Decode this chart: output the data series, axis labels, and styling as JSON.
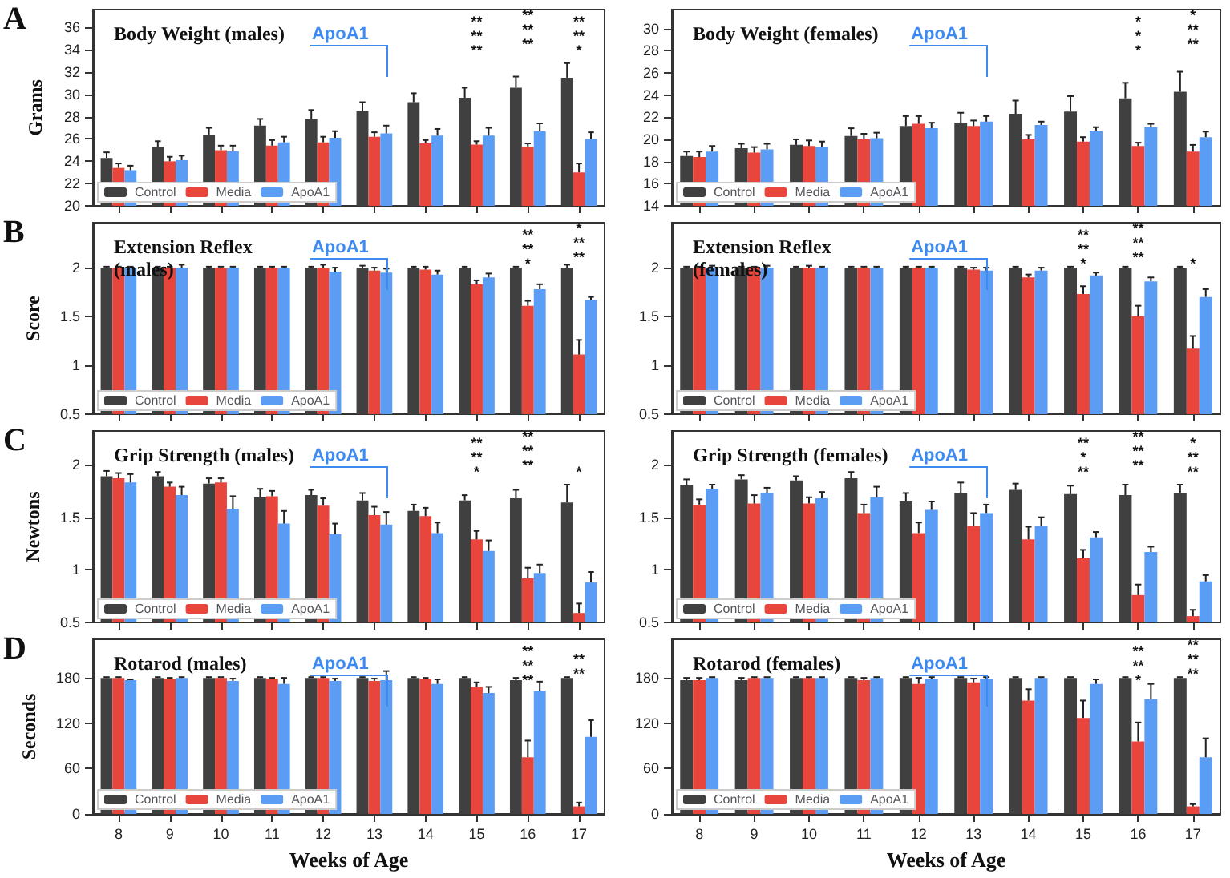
{
  "chart_data": [
    {
      "type": "bar",
      "title": "Body Weight (males)",
      "ylabel": "Grams",
      "categories": [
        "8",
        "9",
        "10",
        "11",
        "12",
        "13",
        "14",
        "15",
        "16",
        "17"
      ],
      "ylim": [
        20,
        37.6
      ],
      "yticks": [
        20,
        22,
        24,
        26,
        28,
        30,
        32,
        34,
        36
      ],
      "legend": "bottom left",
      "tick_labels": "y",
      "series": [
        {
          "name": "Control",
          "color": "#404040",
          "values": [
            24.3,
            25.3,
            26.4,
            27.2,
            27.8,
            28.5,
            29.3,
            29.7,
            30.6,
            31.5
          ],
          "errors": [
            0.5,
            0.5,
            0.6,
            0.6,
            0.8,
            0.8,
            0.8,
            0.9,
            1.0,
            1.3
          ]
        },
        {
          "name": "Media",
          "color": "#e8453c",
          "values": [
            23.4,
            24.0,
            25.0,
            25.4,
            25.7,
            26.2,
            25.6,
            25.5,
            25.3,
            23.0
          ],
          "errors": [
            0.4,
            0.4,
            0.4,
            0.5,
            0.5,
            0.4,
            0.3,
            0.3,
            0.3,
            0.8
          ]
        },
        {
          "name": "ApoA1",
          "color": "#5b9cf5",
          "values": [
            23.2,
            24.1,
            24.9,
            25.7,
            26.1,
            26.5,
            26.3,
            26.3,
            26.7,
            26.0
          ],
          "errors": [
            0.4,
            0.4,
            0.5,
            0.5,
            0.6,
            0.7,
            0.6,
            0.7,
            0.7,
            0.6
          ]
        }
      ],
      "ref_lines": [
        {
          "axis": "x",
          "value": "13",
          "label": "ApoA1",
          "color": "#3d8bf0"
        }
      ],
      "annotations": [
        "A",
        "**",
        "**",
        "**",
        "**",
        "**",
        "**",
        "*",
        "**",
        "**"
      ]
    },
    {
      "type": "bar",
      "title": "Body Weight (females)",
      "categories": [
        "8",
        "9",
        "10",
        "11",
        "12",
        "13",
        "14",
        "15",
        "16",
        "17"
      ],
      "ylim": [
        14,
        31.7
      ],
      "yticks": [
        14,
        16,
        18,
        20,
        22,
        24,
        26,
        28,
        30
      ],
      "legend": "bottom left",
      "tick_labels": "y",
      "series": [
        {
          "name": "Control",
          "color": "#404040",
          "values": [
            18.5,
            19.2,
            19.5,
            20.3,
            21.2,
            21.5,
            22.3,
            22.5,
            23.7,
            24.3
          ],
          "errors": [
            0.4,
            0.4,
            0.5,
            0.7,
            0.9,
            0.9,
            1.2,
            1.4,
            1.4,
            1.8
          ]
        },
        {
          "name": "Media",
          "color": "#e8453c",
          "values": [
            18.4,
            18.8,
            19.4,
            20.0,
            21.4,
            21.2,
            20.0,
            19.8,
            19.4,
            18.9
          ],
          "errors": [
            0.5,
            0.5,
            0.5,
            0.5,
            0.7,
            0.5,
            0.4,
            0.4,
            0.3,
            0.6
          ]
        },
        {
          "name": "ApoA1",
          "color": "#5b9cf5",
          "values": [
            18.9,
            19.1,
            19.3,
            20.1,
            21.0,
            21.6,
            21.3,
            20.8,
            21.1,
            20.2
          ],
          "errors": [
            0.5,
            0.5,
            0.5,
            0.5,
            0.5,
            0.5,
            0.3,
            0.3,
            0.3,
            0.5
          ]
        }
      ],
      "ref_lines": [
        {
          "axis": "x",
          "value": "13",
          "label": "ApoA1",
          "color": "#3d8bf0"
        }
      ],
      "annotations": [
        "*",
        "*",
        "*",
        "**",
        "**",
        "*"
      ]
    },
    {
      "type": "bar",
      "title": "Extension Reflex\n(males)",
      "ylabel": "Score",
      "categories": [
        "8",
        "9",
        "10",
        "11",
        "12",
        "13",
        "14",
        "15",
        "16",
        "17"
      ],
      "ylim": [
        0.5,
        2.46
      ],
      "yticks": [
        0.5,
        1,
        1.5,
        2
      ],
      "legend": "bottom left",
      "tick_labels": "y",
      "series": [
        {
          "name": "Control",
          "color": "#404040",
          "values": [
            2,
            2,
            2,
            2,
            2,
            2,
            2,
            2,
            2,
            2
          ],
          "errors": [
            0.01,
            0.01,
            0.01,
            0.01,
            0.01,
            0.02,
            0.01,
            0.01,
            0.01,
            0.03
          ]
        },
        {
          "name": "Media",
          "color": "#e8453c",
          "values": [
            2,
            2,
            2,
            2,
            2,
            1.97,
            1.98,
            1.83,
            1.61,
            1.11
          ],
          "errors": [
            0.01,
            0.01,
            0.01,
            0.01,
            0.03,
            0.03,
            0.03,
            0.04,
            0.05,
            0.15
          ]
        },
        {
          "name": "ApoA1",
          "color": "#5b9cf5",
          "values": [
            2,
            2,
            2,
            2,
            1.96,
            1.95,
            1.93,
            1.9,
            1.78,
            1.67
          ],
          "errors": [
            0.01,
            0.03,
            0.01,
            0.01,
            0.04,
            0.04,
            0.04,
            0.04,
            0.05,
            0.03
          ]
        }
      ],
      "ref_lines": [
        {
          "axis": "x",
          "value": "13",
          "label": "ApoA1",
          "color": "#3d8bf0"
        }
      ],
      "annotations": [
        "B",
        "*",
        "**",
        "**",
        "**",
        "**",
        "*"
      ]
    },
    {
      "type": "bar",
      "title": "Extension Reflex\n(females)",
      "categories": [
        "8",
        "9",
        "10",
        "11",
        "12",
        "13",
        "14",
        "15",
        "16",
        "17"
      ],
      "ylim": [
        0.5,
        2.46
      ],
      "yticks": [
        0.5,
        1,
        1.5,
        2
      ],
      "legend": "bottom left",
      "tick_labels": "y",
      "series": [
        {
          "name": "Control",
          "color": "#404040",
          "values": [
            2,
            2,
            2,
            2,
            2,
            2,
            2,
            2,
            2,
            2
          ],
          "errors": [
            0.01,
            0.01,
            0.01,
            0.01,
            0.01,
            0.01,
            0.01,
            0.01,
            0.01,
            0.01
          ]
        },
        {
          "name": "Media",
          "color": "#e8453c",
          "values": [
            2,
            2,
            2,
            2,
            2,
            1.98,
            1.9,
            1.73,
            1.5,
            1.17
          ],
          "errors": [
            0.01,
            0.01,
            0.02,
            0.01,
            0.01,
            0.02,
            0.03,
            0.08,
            0.11,
            0.13
          ]
        },
        {
          "name": "ApoA1",
          "color": "#5b9cf5",
          "values": [
            2,
            2,
            2,
            2,
            2,
            1.97,
            1.97,
            1.92,
            1.86,
            1.7
          ],
          "errors": [
            0.02,
            0.02,
            0.01,
            0.01,
            0.01,
            0.03,
            0.03,
            0.03,
            0.04,
            0.08
          ]
        }
      ],
      "ref_lines": [
        {
          "axis": "x",
          "value": "13",
          "label": "ApoA1",
          "color": "#3d8bf0"
        }
      ],
      "annotations": [
        "*",
        "**",
        "**",
        "**",
        "**",
        "**",
        "*"
      ]
    },
    {
      "type": "bar",
      "title": "Grip Strength (males)",
      "ylabel": "Newtons",
      "categories": [
        "8",
        "9",
        "10",
        "11",
        "12",
        "13",
        "14",
        "15",
        "16",
        "17"
      ],
      "ylim": [
        0.5,
        2.32
      ],
      "yticks": [
        0.5,
        1,
        1.5,
        2
      ],
      "legend": "bottom left",
      "tick_labels": "y",
      "series": [
        {
          "name": "Control",
          "color": "#404040",
          "values": [
            1.89,
            1.89,
            1.82,
            1.69,
            1.71,
            1.66,
            1.56,
            1.66,
            1.68,
            1.64
          ],
          "errors": [
            0.05,
            0.04,
            0.05,
            0.08,
            0.05,
            0.07,
            0.06,
            0.05,
            0.08,
            0.17
          ]
        },
        {
          "name": "Media",
          "color": "#e8453c",
          "values": [
            1.87,
            1.79,
            1.83,
            1.7,
            1.61,
            1.52,
            1.51,
            1.29,
            0.92,
            0.59
          ],
          "errors": [
            0.05,
            0.04,
            0.04,
            0.05,
            0.07,
            0.08,
            0.08,
            0.08,
            0.1,
            0.09
          ]
        },
        {
          "name": "ApoA1",
          "color": "#5b9cf5",
          "values": [
            1.83,
            1.71,
            1.58,
            1.44,
            1.34,
            1.43,
            1.35,
            1.18,
            0.97,
            0.88
          ],
          "errors": [
            0.08,
            0.08,
            0.12,
            0.12,
            0.1,
            0.12,
            0.1,
            0.1,
            0.08,
            0.1
          ]
        }
      ],
      "ref_lines": [
        {
          "axis": "x",
          "value": "13",
          "label": "ApoA1",
          "color": "#3d8bf0"
        }
      ],
      "annotations": [
        "C",
        "*",
        "**",
        "**",
        "**",
        "**",
        "**",
        "*"
      ]
    },
    {
      "type": "bar",
      "title": "Grip Strength (females)",
      "categories": [
        "8",
        "9",
        "10",
        "11",
        "12",
        "13",
        "14",
        "15",
        "16",
        "17"
      ],
      "ylim": [
        0.5,
        2.32
      ],
      "yticks": [
        0.5,
        1,
        1.5,
        2
      ],
      "legend": "bottom left",
      "tick_labels": "y",
      "series": [
        {
          "name": "Control",
          "color": "#404040",
          "values": [
            1.81,
            1.86,
            1.85,
            1.87,
            1.65,
            1.73,
            1.76,
            1.72,
            1.71,
            1.73
          ],
          "errors": [
            0.05,
            0.04,
            0.04,
            0.06,
            0.08,
            0.1,
            0.06,
            0.08,
            0.1,
            0.08
          ]
        },
        {
          "name": "Media",
          "color": "#e8453c",
          "values": [
            1.62,
            1.63,
            1.63,
            1.54,
            1.35,
            1.42,
            1.29,
            1.11,
            0.76,
            0.56
          ],
          "errors": [
            0.05,
            0.08,
            0.06,
            0.08,
            0.1,
            0.12,
            0.12,
            0.08,
            0.1,
            0.06
          ]
        },
        {
          "name": "ApoA1",
          "color": "#5b9cf5",
          "values": [
            1.77,
            1.73,
            1.68,
            1.69,
            1.57,
            1.54,
            1.42,
            1.31,
            1.17,
            0.89
          ],
          "errors": [
            0.04,
            0.05,
            0.06,
            0.1,
            0.08,
            0.08,
            0.08,
            0.05,
            0.05,
            0.06
          ]
        }
      ],
      "ref_lines": [
        {
          "axis": "x",
          "value": "13",
          "label": "ApoA1",
          "color": "#3d8bf0"
        }
      ],
      "annotations": [
        "**",
        "*",
        "**",
        "**",
        "**",
        "**",
        "**",
        "**",
        "*"
      ]
    },
    {
      "type": "bar",
      "title": "Rotarod (males)",
      "ylabel": "Seconds",
      "xlabel": "Weeks of Age",
      "categories": [
        "8",
        "9",
        "10",
        "11",
        "12",
        "13",
        "14",
        "15",
        "16",
        "17"
      ],
      "ylim": [
        0,
        231
      ],
      "yticks": [
        0,
        60,
        120,
        180
      ],
      "legend": "bottom left",
      "series": [
        {
          "name": "Control",
          "color": "#404040",
          "values": [
            180,
            180,
            180,
            180,
            180,
            180,
            180,
            180,
            177,
            180
          ],
          "errors": [
            1,
            1,
            1,
            1,
            1,
            1,
            1,
            1,
            3,
            1
          ]
        },
        {
          "name": "Media",
          "color": "#e8453c",
          "values": [
            180,
            179,
            180,
            179,
            180,
            176,
            178,
            168,
            75,
            10
          ],
          "errors": [
            1,
            1,
            1,
            1,
            1,
            3,
            2,
            6,
            22,
            5
          ]
        },
        {
          "name": "ApoA1",
          "color": "#5b9cf5",
          "values": [
            177,
            180,
            176,
            172,
            176,
            177,
            172,
            160,
            163,
            102
          ],
          "errors": [
            1,
            1,
            3,
            8,
            3,
            12,
            6,
            8,
            12,
            22
          ]
        }
      ],
      "ref_lines": [
        {
          "axis": "x",
          "value": "13",
          "label": "ApoA1",
          "color": "#3d8bf0"
        }
      ],
      "annotations": [
        "D",
        "**",
        "**",
        "**",
        "**",
        "**"
      ]
    },
    {
      "type": "bar",
      "title": "Rotarod (females)",
      "xlabel": "Weeks of Age",
      "categories": [
        "8",
        "9",
        "10",
        "11",
        "12",
        "13",
        "14",
        "15",
        "16",
        "17"
      ],
      "ylim": [
        0,
        231
      ],
      "yticks": [
        0,
        60,
        120,
        180
      ],
      "legend": "bottom left",
      "series": [
        {
          "name": "Control",
          "color": "#404040",
          "values": [
            177,
            177,
            180,
            180,
            180,
            180,
            180,
            180,
            180,
            180
          ],
          "errors": [
            3,
            3,
            1,
            1,
            1,
            1,
            1,
            1,
            1,
            1
          ]
        },
        {
          "name": "Media",
          "color": "#e8453c",
          "values": [
            177,
            180,
            180,
            177,
            172,
            174,
            150,
            127,
            96,
            10
          ],
          "errors": [
            3,
            1,
            1,
            3,
            8,
            5,
            15,
            23,
            25,
            3
          ]
        },
        {
          "name": "ApoA1",
          "color": "#5b9cf5",
          "values": [
            180,
            180,
            180,
            180,
            178,
            178,
            180,
            172,
            152,
            75
          ],
          "errors": [
            1,
            1,
            1,
            1,
            3,
            3,
            1,
            6,
            20,
            25
          ]
        }
      ],
      "ref_lines": [
        {
          "axis": "x",
          "value": "13",
          "label": "ApoA1",
          "color": "#3d8bf0"
        }
      ],
      "annotations": [
        "*",
        "**",
        "**",
        "**",
        "**",
        "**"
      ]
    }
  ]
}
